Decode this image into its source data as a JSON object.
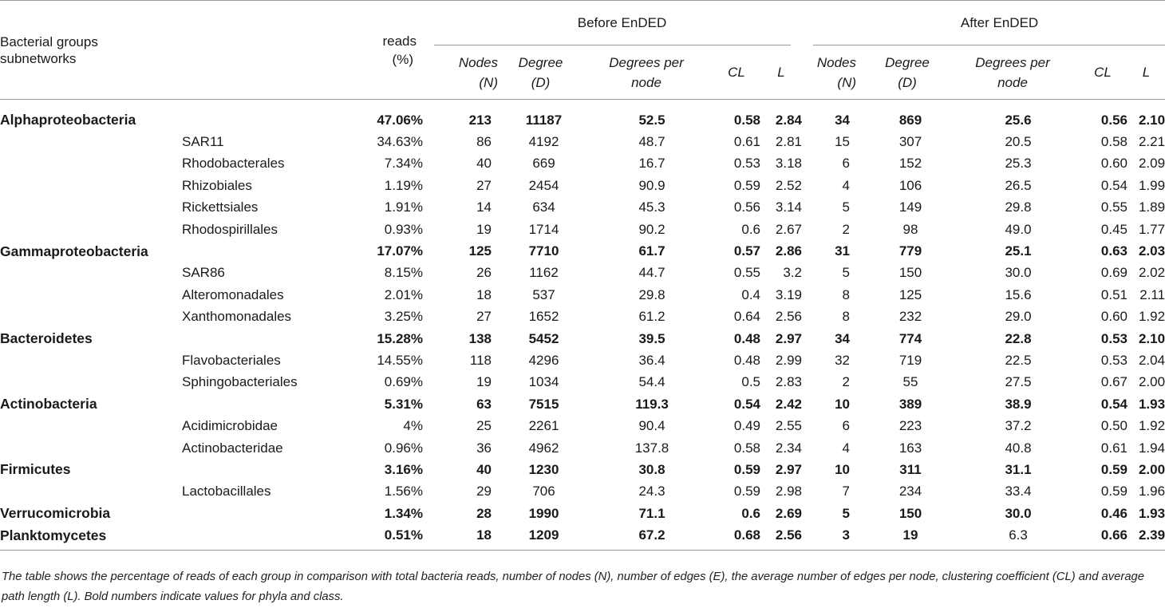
{
  "header": {
    "group_col": "Bacterial groups subnetworks",
    "group_col_line1": "Bacterial groups",
    "group_col_line2": "subnetworks",
    "reads_line1": "reads",
    "reads_line2": "(%)",
    "before": "Before EnDED",
    "after": "After EnDED",
    "sub": {
      "nodes_l1": "Nodes",
      "nodes_l2": "(N)",
      "degree_l1": "Degree",
      "degree_l2": "(D)",
      "dpn_l1": "Degrees per",
      "dpn_l2": "node",
      "cl": "CL",
      "l": "L"
    }
  },
  "rows": [
    {
      "group": "Alphaproteobacteria",
      "sub": "",
      "reads": "47.06%",
      "b": [
        "213",
        "11187",
        "52.5",
        "0.58",
        "2.84"
      ],
      "a": [
        "34",
        "869",
        "25.6",
        "0.56",
        "2.10"
      ],
      "bold": true
    },
    {
      "group": "",
      "sub": "SAR11",
      "reads": "34.63%",
      "b": [
        "86",
        "4192",
        "48.7",
        "0.61",
        "2.81"
      ],
      "a": [
        "15",
        "307",
        "20.5",
        "0.58",
        "2.21"
      ],
      "bold": false
    },
    {
      "group": "",
      "sub": "Rhodobacterales",
      "reads": "7.34%",
      "b": [
        "40",
        "669",
        "16.7",
        "0.53",
        "3.18"
      ],
      "a": [
        "6",
        "152",
        "25.3",
        "0.60",
        "2.09"
      ],
      "bold": false
    },
    {
      "group": "",
      "sub": "Rhizobiales",
      "reads": "1.19%",
      "b": [
        "27",
        "2454",
        "90.9",
        "0.59",
        "2.52"
      ],
      "a": [
        "4",
        "106",
        "26.5",
        "0.54",
        "1.99"
      ],
      "bold": false
    },
    {
      "group": "",
      "sub": "Rickettsiales",
      "reads": "1.91%",
      "b": [
        "14",
        "634",
        "45.3",
        "0.56",
        "3.14"
      ],
      "a": [
        "5",
        "149",
        "29.8",
        "0.55",
        "1.89"
      ],
      "bold": false
    },
    {
      "group": "",
      "sub": "Rhodospirillales",
      "reads": "0.93%",
      "b": [
        "19",
        "1714",
        "90.2",
        "0.6",
        "2.67"
      ],
      "a": [
        "2",
        "98",
        "49.0",
        "0.45",
        "1.77"
      ],
      "bold": false
    },
    {
      "group": "Gammaproteobacteria",
      "sub": "",
      "reads": "17.07%",
      "b": [
        "125",
        "7710",
        "61.7",
        "0.57",
        "2.86"
      ],
      "a": [
        "31",
        "779",
        "25.1",
        "0.63",
        "2.03"
      ],
      "bold": true
    },
    {
      "group": "",
      "sub": "SAR86",
      "reads": "8.15%",
      "b": [
        "26",
        "1162",
        "44.7",
        "0.55",
        "3.2"
      ],
      "a": [
        "5",
        "150",
        "30.0",
        "0.69",
        "2.02"
      ],
      "bold": false
    },
    {
      "group": "",
      "sub": "Alteromonadales",
      "reads": "2.01%",
      "b": [
        "18",
        "537",
        "29.8",
        "0.4",
        "3.19"
      ],
      "a": [
        "8",
        "125",
        "15.6",
        "0.51",
        "2.11"
      ],
      "bold": false
    },
    {
      "group": "",
      "sub": "Xanthomonadales",
      "reads": "3.25%",
      "b": [
        "27",
        "1652",
        "61.2",
        "0.64",
        "2.56"
      ],
      "a": [
        "8",
        "232",
        "29.0",
        "0.60",
        "1.92"
      ],
      "bold": false
    },
    {
      "group": "Bacteroidetes",
      "sub": "",
      "reads": "15.28%",
      "b": [
        "138",
        "5452",
        "39.5",
        "0.48",
        "2.97"
      ],
      "a": [
        "34",
        "774",
        "22.8",
        "0.53",
        "2.10"
      ],
      "bold": true
    },
    {
      "group": "",
      "sub": "Flavobacteriales",
      "reads": "14.55%",
      "b": [
        "118",
        "4296",
        "36.4",
        "0.48",
        "2.99"
      ],
      "a": [
        "32",
        "719",
        "22.5",
        "0.53",
        "2.04"
      ],
      "bold": false
    },
    {
      "group": "",
      "sub": "Sphingobacteriales",
      "reads": "0.69%",
      "b": [
        "19",
        "1034",
        "54.4",
        "0.5",
        "2.83"
      ],
      "a": [
        "2",
        "55",
        "27.5",
        "0.67",
        "2.00"
      ],
      "bold": false
    },
    {
      "group": "Actinobacteria",
      "sub": "",
      "reads": "5.31%",
      "b": [
        "63",
        "7515",
        "119.3",
        "0.54",
        "2.42"
      ],
      "a": [
        "10",
        "389",
        "38.9",
        "0.54",
        "1.93"
      ],
      "bold": true
    },
    {
      "group": "",
      "sub": "Acidimicrobidae",
      "reads": "4%",
      "b": [
        "25",
        "2261",
        "90.4",
        "0.49",
        "2.55"
      ],
      "a": [
        "6",
        "223",
        "37.2",
        "0.50",
        "1.92"
      ],
      "bold": false
    },
    {
      "group": "",
      "sub": "Actinobacteridae",
      "reads": "0.96%",
      "b": [
        "36",
        "4962",
        "137.8",
        "0.58",
        "2.34"
      ],
      "a": [
        "4",
        "163",
        "40.8",
        "0.61",
        "1.94"
      ],
      "bold": false
    },
    {
      "group": "Firmicutes",
      "sub": "",
      "reads": "3.16%",
      "b": [
        "40",
        "1230",
        "30.8",
        "0.59",
        "2.97"
      ],
      "a": [
        "10",
        "311",
        "31.1",
        "0.59",
        "2.00"
      ],
      "bold": true
    },
    {
      "group": "",
      "sub": "Lactobacillales",
      "reads": "1.56%",
      "b": [
        "29",
        "706",
        "24.3",
        "0.59",
        "2.98"
      ],
      "a": [
        "7",
        "234",
        "33.4",
        "0.59",
        "1.96"
      ],
      "bold": false
    },
    {
      "group": "Verrucomicrobia",
      "sub": "",
      "reads": "1.34%",
      "b": [
        "28",
        "1990",
        "71.1",
        "0.6",
        "2.69"
      ],
      "a": [
        "5",
        "150",
        "30.0",
        "0.46",
        "1.93"
      ],
      "bold": true
    },
    {
      "group": "Planktomycetes",
      "sub": "",
      "reads": "0.51%",
      "b": [
        "18",
        "1209",
        "67.2",
        "0.68",
        "2.56"
      ],
      "a": [
        "3",
        "19",
        "6.3",
        "0.66",
        "2.39"
      ],
      "bold": true,
      "a_dpn_normal": true
    }
  ],
  "footnote": "The table shows the percentage of reads of each group in comparison with total bacteria reads, number of nodes (N), number of edges (E), the average number of edges per node, clustering coefficient (CL) and average path length (L). Bold numbers indicate values for phyla and class."
}
